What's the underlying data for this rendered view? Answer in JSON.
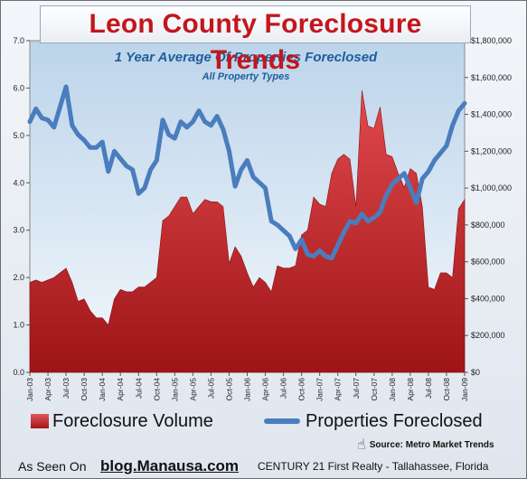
{
  "chart_data": {
    "type": "area+line",
    "title": "Leon County Foreclosure Trends",
    "subtitle": "1 Year Average Of Properties Foreclosed",
    "subtitle2": "All Property Types",
    "left_axis": {
      "ylim": [
        0,
        7
      ],
      "ticks": [
        "0.0",
        "1.0",
        "2.0",
        "3.0",
        "4.0",
        "5.0",
        "6.0",
        "7.0"
      ]
    },
    "right_axis": {
      "ylim": [
        0,
        1800000
      ],
      "ticks": [
        "$0",
        "$200,000",
        "$400,000",
        "$600,000",
        "$800,000",
        "$1,000,000",
        "$1,200,000",
        "$1,400,000",
        "$1,600,000",
        "$1,800,000"
      ]
    },
    "x_labels": [
      "Jan-03",
      "Apr-03",
      "Jul-03",
      "Oct-03",
      "Jan-04",
      "Apr-04",
      "Jul-04",
      "Oct-04",
      "Jan-05",
      "Apr-05",
      "Jul-05",
      "Oct-05",
      "Jan-06",
      "Apr-06",
      "Jul-06",
      "Oct-06",
      "Jan-07",
      "Apr-07",
      "Jul-07",
      "Oct-07",
      "Jan-08",
      "Apr-08",
      "Jul-08",
      "Oct-08",
      "Jan-09"
    ],
    "months": 73,
    "series": [
      {
        "name": "Foreclosure Volume",
        "axis": "left",
        "color": "#c0282b",
        "values": [
          1.9,
          1.95,
          1.9,
          1.95,
          2.0,
          2.1,
          2.2,
          1.9,
          1.5,
          1.55,
          1.3,
          1.15,
          1.15,
          1.0,
          1.55,
          1.75,
          1.7,
          1.7,
          1.8,
          1.8,
          1.9,
          2.0,
          3.2,
          3.3,
          3.5,
          3.7,
          3.7,
          3.35,
          3.5,
          3.65,
          3.6,
          3.6,
          3.5,
          2.3,
          2.65,
          2.45,
          2.1,
          1.8,
          2.0,
          1.9,
          1.7,
          2.25,
          2.2,
          2.2,
          2.25,
          2.9,
          3.0,
          3.7,
          3.55,
          3.5,
          4.2,
          4.5,
          4.6,
          4.5,
          3.5,
          5.95,
          5.2,
          5.15,
          5.6,
          4.6,
          4.55,
          4.2,
          3.9,
          4.3,
          4.2,
          3.5,
          1.8,
          1.75,
          2.1,
          2.1,
          2.0,
          3.45,
          3.65
        ]
      },
      {
        "name": "Properties Foreclosed",
        "axis": "right",
        "color": "#4a7dbd",
        "values": [
          1360000,
          1430000,
          1380000,
          1370000,
          1330000,
          1440000,
          1550000,
          1340000,
          1290000,
          1260000,
          1220000,
          1220000,
          1250000,
          1090000,
          1200000,
          1160000,
          1120000,
          1100000,
          970000,
          1000000,
          1100000,
          1150000,
          1370000,
          1290000,
          1270000,
          1360000,
          1330000,
          1360000,
          1420000,
          1360000,
          1340000,
          1390000,
          1320000,
          1200000,
          1010000,
          1100000,
          1150000,
          1060000,
          1030000,
          1000000,
          820000,
          800000,
          770000,
          740000,
          670000,
          720000,
          640000,
          630000,
          660000,
          630000,
          620000,
          690000,
          760000,
          820000,
          810000,
          860000,
          820000,
          840000,
          870000,
          960000,
          1020000,
          1050000,
          1080000,
          1000000,
          920000,
          1050000,
          1090000,
          1150000,
          1190000,
          1230000,
          1340000,
          1420000,
          1460000
        ]
      }
    ],
    "legend_position": "bottom",
    "grid": false
  },
  "legend": {
    "volume_label": "Foreclosure Volume",
    "properties_label": "Properties Foreclosed"
  },
  "source": "Source: Metro Market Trends",
  "footer": {
    "as_seen": "As Seen On",
    "blog": "blog.Manausa.com",
    "company": "CENTURY 21 First Realty - Tallahassee, Florida"
  },
  "colors": {
    "title": "#c3161c",
    "subtitle": "#1f5d9c",
    "area": "#c0282b",
    "line": "#4a7dbd"
  }
}
